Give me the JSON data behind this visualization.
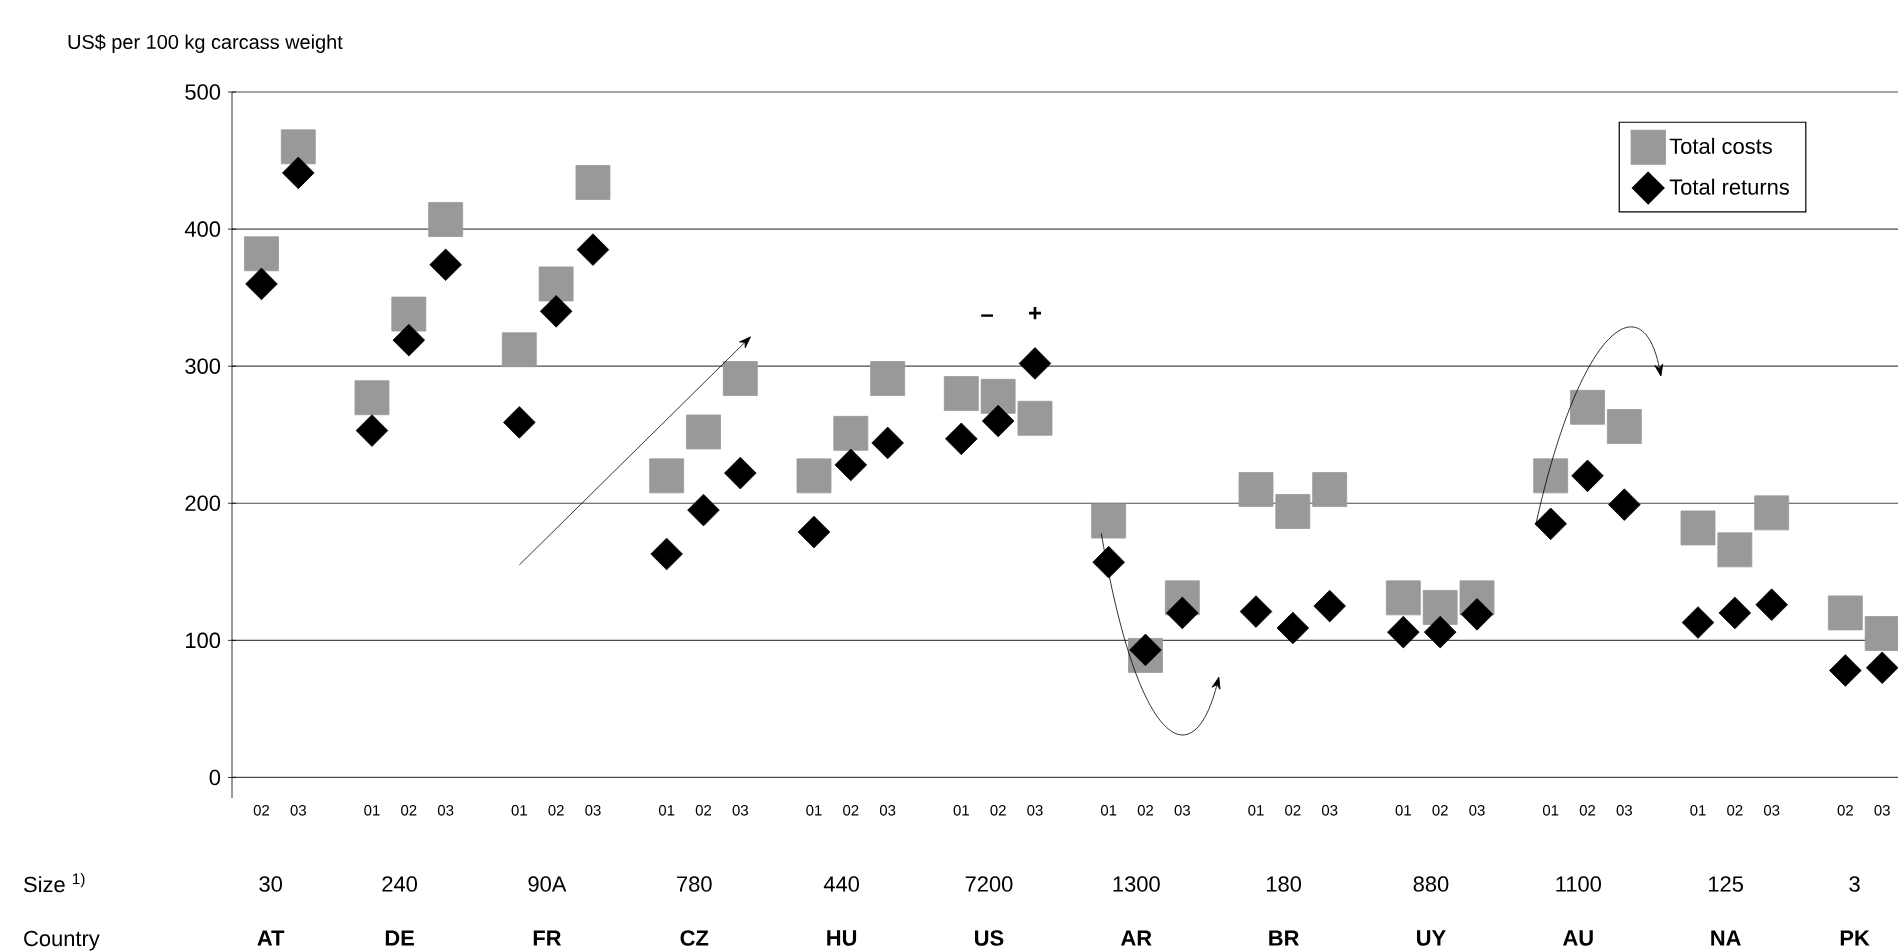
{
  "chart_data": {
    "type": "scatter",
    "ylabel": "US$ per 100 kg carcass weight",
    "categories": [
      "02",
      "03",
      null,
      "01",
      "02",
      "03",
      null,
      "01",
      "02",
      "03",
      null,
      "01",
      "02",
      "03",
      null,
      "01",
      "02",
      "03",
      null,
      "01",
      "02",
      "03",
      null,
      "01",
      "02",
      "03",
      null,
      "01",
      "02",
      "03",
      null,
      "01",
      "02",
      "03",
      null,
      "01",
      "02",
      "03",
      null,
      "01",
      "02",
      "03",
      null,
      "02",
      "03"
    ],
    "series": [
      {
        "name": "Total costs",
        "color": "#999999",
        "marker": "square",
        "values": [
          382,
          460,
          null,
          277,
          338,
          407,
          null,
          312,
          360,
          434,
          null,
          220,
          252,
          291,
          null,
          220,
          251,
          291,
          null,
          280,
          278,
          262,
          null,
          187,
          89,
          131,
          null,
          210,
          194,
          210,
          null,
          131,
          124,
          131,
          null,
          220,
          270,
          256,
          null,
          182,
          166,
          193,
          null,
          120,
          105
        ]
      },
      {
        "name": "Total returns",
        "color": "#000000",
        "marker": "diamond",
        "values": [
          360,
          441,
          null,
          253,
          319,
          374,
          null,
          259,
          340,
          385,
          null,
          163,
          195,
          222,
          null,
          179,
          228,
          244,
          null,
          247,
          260,
          302,
          null,
          157,
          93,
          120,
          null,
          121,
          109,
          125,
          null,
          106,
          106,
          119,
          null,
          185,
          220,
          199,
          null,
          113,
          120,
          126,
          null,
          78,
          80
        ]
      }
    ],
    "ylim": [
      -15,
      500
    ],
    "yticks": [
      0,
      100,
      200,
      300,
      400,
      500
    ],
    "grid": "y",
    "legend": "top right",
    "annotations": [
      "Size $^{1)}$",
      "Country",
      "30",
      "240",
      "90A",
      "780",
      "440",
      "7200",
      "1300",
      "180",
      "880",
      "1100",
      "125",
      "3",
      "AT",
      "DE",
      "FR",
      "CZ",
      "HU",
      "US",
      "AR",
      "BR",
      "UY",
      "AU",
      "NA",
      "PK",
      "–",
      "+"
    ]
  }
}
